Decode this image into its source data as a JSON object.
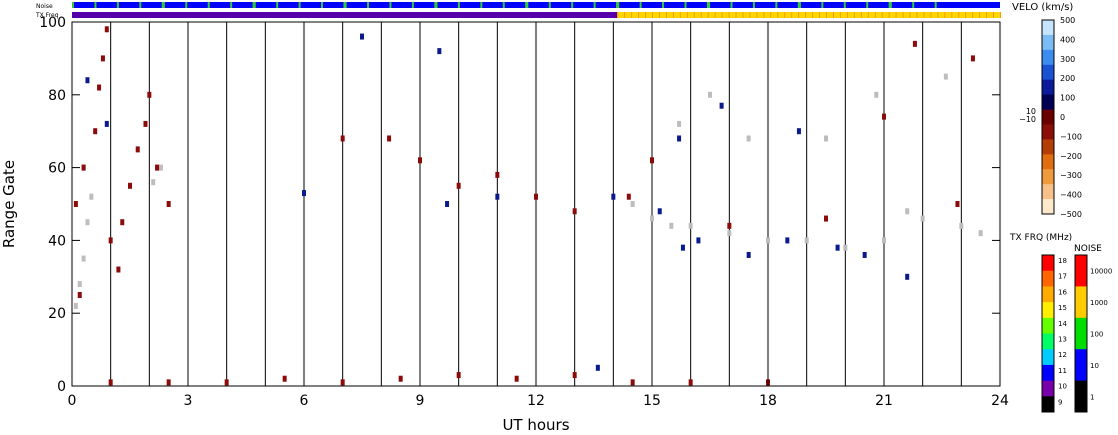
{
  "chart_data": {
    "type": "scatter",
    "xlabel": "UT hours",
    "ylabel": "Range Gate",
    "xlim": [
      0,
      24
    ],
    "ylim": [
      0,
      100
    ],
    "x_ticks": [
      "0",
      "3",
      "6",
      "9",
      "12",
      "15",
      "18",
      "21",
      "24"
    ],
    "y_ticks": [
      "0",
      "20",
      "40",
      "60",
      "80",
      "100"
    ],
    "hour_lines": [
      1,
      2,
      3,
      4,
      5,
      6,
      7,
      8,
      9,
      10,
      11,
      12,
      13,
      14,
      15,
      16,
      17,
      18,
      19,
      20,
      21,
      22,
      23
    ],
    "strip_labels": {
      "noise": "Noise",
      "txfreq": "TX Freq"
    },
    "txfreq_switch_hour": 14.1,
    "velocity_scale": {
      "title": "VELO (km/s)",
      "ticks": [
        "500",
        "400",
        "300",
        "200",
        "100",
        "0",
        "−100",
        "−200",
        "−300",
        "−400",
        "−500"
      ],
      "extra_labels": [
        "10",
        "−10"
      ],
      "colors": [
        "#fde8cc",
        "#f7c08a",
        "#f09a3e",
        "#e06d10",
        "#b43d08",
        "#8a0f08",
        "#6a0000",
        "#000055",
        "#0a1a9a",
        "#1a50d2",
        "#3c8cf0",
        "#7bbcf5",
        "#c5e3fb"
      ]
    },
    "txfreq_scale": {
      "title": "TX FRQ (MHz)",
      "ticks": [
        "18",
        "17",
        "16",
        "15",
        "14",
        "13",
        "12",
        "11",
        "10",
        "9"
      ],
      "colors": [
        "#ff0000",
        "#ff6600",
        "#ffaa00",
        "#ffee00",
        "#66ff00",
        "#00ff66",
        "#00ccff",
        "#0000ff",
        "#7700aa",
        "#000000"
      ]
    },
    "noise_scale": {
      "title": "NOISE",
      "ticks": [
        "10000",
        "1000",
        "100",
        "10",
        "1"
      ],
      "colors": [
        "#ff0000",
        "#ffcc00",
        "#00dd00",
        "#0000ff",
        "#000000"
      ]
    },
    "colors": {
      "ground_scatter": "#bdbdbd",
      "negative_velocity": "#8b0a0a",
      "positive_velocity": "#0a1a8c",
      "noise_strip": "#0000ff",
      "noise_ticks": "#33cc33",
      "txfreq_before": "#5500aa",
      "txfreq_after": "#ffd700"
    },
    "series": [
      {
        "key": "ground_scatter",
        "points": [
          [
            0.1,
            22
          ],
          [
            0.2,
            28
          ],
          [
            0.3,
            35
          ],
          [
            0.4,
            45
          ],
          [
            0.5,
            52
          ],
          [
            0.3,
            60
          ],
          [
            2.1,
            56
          ],
          [
            2.3,
            60
          ],
          [
            14.5,
            50
          ],
          [
            15.0,
            46
          ],
          [
            15.5,
            44
          ],
          [
            16.0,
            44
          ],
          [
            17.0,
            42
          ],
          [
            18.0,
            40
          ],
          [
            19.0,
            40
          ],
          [
            20.0,
            38
          ],
          [
            21.0,
            40
          ],
          [
            21.6,
            48
          ],
          [
            22.0,
            46
          ],
          [
            23.0,
            44
          ],
          [
            23.5,
            42
          ],
          [
            15.7,
            72
          ],
          [
            17.5,
            68
          ],
          [
            19.5,
            68
          ],
          [
            16.5,
            80
          ],
          [
            20.8,
            80
          ],
          [
            22.6,
            85
          ]
        ]
      },
      {
        "key": "negative_velocity",
        "points": [
          [
            0.2,
            25
          ],
          [
            0.1,
            50
          ],
          [
            0.3,
            60
          ],
          [
            0.6,
            70
          ],
          [
            0.7,
            82
          ],
          [
            0.8,
            90
          ],
          [
            0.9,
            98
          ],
          [
            1.0,
            40
          ],
          [
            1.2,
            32
          ],
          [
            1.3,
            45
          ],
          [
            1.5,
            55
          ],
          [
            1.7,
            65
          ],
          [
            1.9,
            72
          ],
          [
            2.0,
            80
          ],
          [
            2.2,
            60
          ],
          [
            2.5,
            50
          ],
          [
            7.0,
            68
          ],
          [
            8.2,
            68
          ],
          [
            9.0,
            62
          ],
          [
            10.0,
            55
          ],
          [
            11.0,
            58
          ],
          [
            12.0,
            52
          ],
          [
            13.0,
            48
          ],
          [
            14.4,
            52
          ],
          [
            15.0,
            62
          ],
          [
            17.0,
            44
          ],
          [
            19.5,
            46
          ],
          [
            21.0,
            74
          ],
          [
            21.8,
            94
          ],
          [
            22.9,
            50
          ],
          [
            23.3,
            90
          ],
          [
            1.0,
            1
          ],
          [
            2.5,
            1
          ],
          [
            4.0,
            1
          ],
          [
            5.5,
            2
          ],
          [
            7.0,
            1
          ],
          [
            8.5,
            2
          ],
          [
            10.0,
            3
          ],
          [
            11.5,
            2
          ],
          [
            13.0,
            3
          ],
          [
            14.5,
            1
          ],
          [
            16.0,
            1
          ],
          [
            18.0,
            1
          ]
        ]
      },
      {
        "key": "positive_velocity",
        "points": [
          [
            0.9,
            72
          ],
          [
            0.4,
            84
          ],
          [
            9.7,
            50
          ],
          [
            11.0,
            52
          ],
          [
            14.0,
            52
          ],
          [
            15.2,
            48
          ],
          [
            15.8,
            38
          ],
          [
            16.2,
            40
          ],
          [
            17.5,
            36
          ],
          [
            18.5,
            40
          ],
          [
            19.8,
            38
          ],
          [
            20.5,
            36
          ],
          [
            21.6,
            30
          ],
          [
            15.7,
            68
          ],
          [
            16.8,
            77
          ],
          [
            9.5,
            92
          ],
          [
            18.8,
            70
          ],
          [
            6.0,
            53
          ],
          [
            7.5,
            96
          ],
          [
            13.6,
            5
          ]
        ]
      }
    ]
  }
}
